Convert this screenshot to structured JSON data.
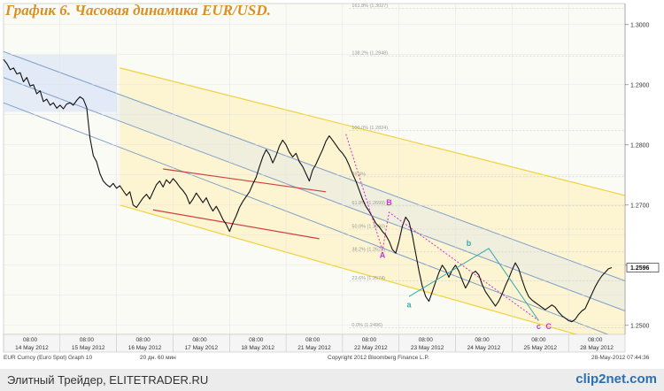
{
  "page": {
    "title": "График 6.   Часовая динамика EUR/USD.",
    "footer_left": "Элитный Трейдер, ELITETRADER.RU",
    "footer_logo": "clip2net.com"
  },
  "chart_data": {
    "type": "line",
    "series_name": "EUR Curncy (Euro Spot)  Graph 10",
    "meta_bar": {
      "left": "EUR Curncy (Euro Spot)  Graph 10",
      "period": "20 дн. 60 мин",
      "copyright": "Copyright 2012 Bloomberg Finance L.P.",
      "date": "28-May-2012 07:44:36"
    },
    "ylim": [
      1.2485,
      1.3035
    ],
    "y_ticks": [
      "1.2500",
      "1.2600",
      "1.2700",
      "1.2800",
      "1.2900",
      "1.3000"
    ],
    "last_price": "1.2596",
    "day_labels": [
      "14 May 2012",
      "15 May 2012",
      "16 May 2012",
      "17 May 2012",
      "18 May 2012",
      "21 May 2012",
      "22 May 2012",
      "23 May 2012",
      "24 May 2012",
      "25 May 2012",
      "28 May 2012"
    ],
    "time_label": "08:00",
    "price": {
      "start_hour": 0,
      "values": [
        1.2942,
        1.2935,
        1.2925,
        1.2928,
        1.2918,
        1.292,
        1.2905,
        1.2912,
        1.2898,
        1.29,
        1.2885,
        1.289,
        1.2872,
        1.2876,
        1.2866,
        1.287,
        1.2861,
        1.2866,
        1.286,
        1.2868,
        1.287,
        1.2866,
        1.2874,
        1.288,
        1.2876,
        1.2862,
        1.2812,
        1.2782,
        1.2772,
        1.2752,
        1.274,
        1.2734,
        1.273,
        1.2736,
        1.2728,
        1.2732,
        1.2724,
        1.2716,
        1.2722,
        1.27,
        1.2696,
        1.2704,
        1.2712,
        1.2718,
        1.271,
        1.2722,
        1.2734,
        1.274,
        1.273,
        1.2742,
        1.2736,
        1.2744,
        1.2738,
        1.273,
        1.2724,
        1.2716,
        1.2702,
        1.271,
        1.272,
        1.2712,
        1.2704,
        1.2712,
        1.27,
        1.269,
        1.2698,
        1.2688,
        1.2676,
        1.2668,
        1.2656,
        1.267,
        1.2682,
        1.2696,
        1.2706,
        1.2714,
        1.2722,
        1.2735,
        1.2746,
        1.2764,
        1.278,
        1.2792,
        1.2784,
        1.277,
        1.2782,
        1.2798,
        1.2808,
        1.28,
        1.2788,
        1.278,
        1.2786,
        1.2772,
        1.2764,
        1.2752,
        1.274,
        1.2758,
        1.2768,
        1.278,
        1.2792,
        1.2806,
        1.2815,
        1.2808,
        1.28,
        1.2792,
        1.2786,
        1.2778,
        1.2766,
        1.2752,
        1.274,
        1.2725,
        1.271,
        1.2698,
        1.269,
        1.268,
        1.267,
        1.2664,
        1.2656,
        1.265,
        1.264,
        1.2626,
        1.262,
        1.264,
        1.2665,
        1.268,
        1.2672,
        1.265,
        1.262,
        1.259,
        1.2565,
        1.2548,
        1.254,
        1.2556,
        1.2572,
        1.2588,
        1.26,
        1.2592,
        1.258,
        1.2592,
        1.26,
        1.259,
        1.2575,
        1.2562,
        1.2572,
        1.2586,
        1.259,
        1.2584,
        1.2568,
        1.2556,
        1.2548,
        1.254,
        1.2532,
        1.254,
        1.2552,
        1.2566,
        1.2578,
        1.2592,
        1.2604,
        1.2594,
        1.2576,
        1.256,
        1.2548,
        1.2542,
        1.2538,
        1.2534,
        1.253,
        1.2526,
        1.253,
        1.2534,
        1.253,
        1.2522,
        1.2516,
        1.2512,
        1.2508,
        1.2506,
        1.251,
        1.2518,
        1.2524,
        1.2528,
        1.254,
        1.2552,
        1.2564,
        1.2574,
        1.2582,
        1.2588,
        1.2594,
        1.2596
      ]
    },
    "fib_levels": [
      {
        "label": "161.8% (1.3027)",
        "value": 1.3027
      },
      {
        "label": "138.2% (1.2948)",
        "value": 1.2948
      },
      {
        "label": "100.0% (1.2824)",
        "value": 1.2824
      },
      {
        "label": "76.4%",
        "value": 1.2747
      },
      {
        "label": "61.8% (1.2699)",
        "value": 1.2699
      },
      {
        "label": "50.0% (1.2660)",
        "value": 1.266
      },
      {
        "label": "38.2% (1.2622)",
        "value": 1.2622
      },
      {
        "label": "23.6% (1.2574)",
        "value": 1.2574
      },
      {
        "label": "0.0% (1.2496)",
        "value": 1.2496
      }
    ],
    "wave_labels": [
      {
        "label": "A",
        "x_hour": 114,
        "y": 1.2612,
        "color": "#cc33cc"
      },
      {
        "label": "B",
        "x_hour": 116,
        "y": 1.27,
        "color": "#cc33cc"
      },
      {
        "label": "a",
        "x_hour": 122,
        "y": 1.253,
        "color": "#33aaaa"
      },
      {
        "label": "b",
        "x_hour": 140,
        "y": 1.2632,
        "color": "#33aaaa"
      },
      {
        "label": "c",
        "x_hour": 161,
        "y": 1.2494,
        "color": "#cc33cc"
      },
      {
        "label": "C",
        "x_hour": 164,
        "y": 1.2494,
        "color": "#cc33cc"
      }
    ]
  }
}
